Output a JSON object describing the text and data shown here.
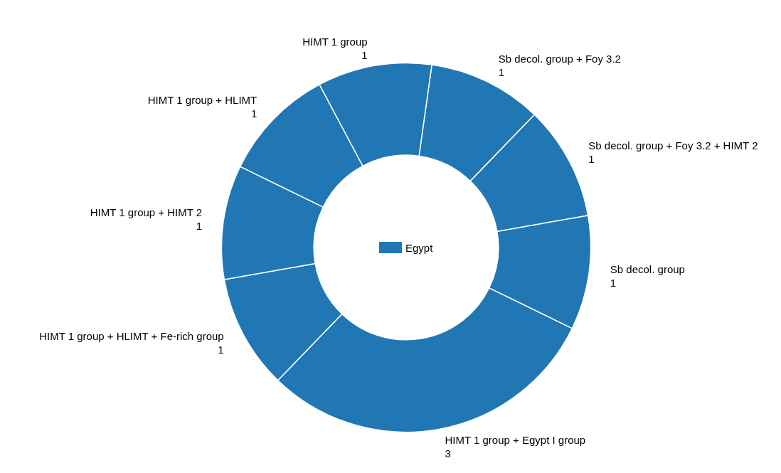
{
  "chart_data": {
    "type": "donut",
    "categories": [
      "Sb decol. group + Foy 3.2",
      "Sb decol. group + Foy 3.2 + HIMT 2",
      "Sb decol. group",
      "HIMT 1 group + Egypt I group",
      "HIMT 1 group + HLIMT + Fe-rich group",
      "HIMT 1 group + HIMT 2",
      "HIMT 1 group + HLIMT",
      "HIMT 1 group"
    ],
    "series": [
      {
        "name": "Egypt",
        "color": "#2077b4",
        "values": [
          1,
          1,
          1,
          3,
          1,
          1,
          1,
          1
        ]
      }
    ],
    "data_labels": true,
    "legend": "center"
  }
}
